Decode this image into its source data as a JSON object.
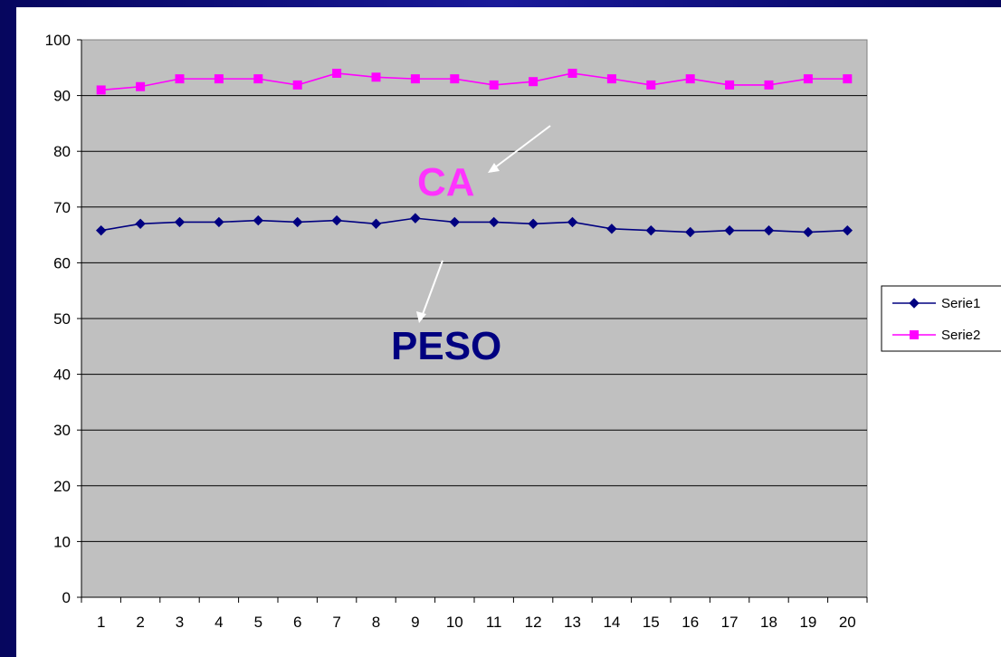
{
  "chart_data": {
    "type": "line",
    "title": "",
    "xlabel": "",
    "ylabel": "",
    "categories": [
      "1",
      "2",
      "3",
      "4",
      "5",
      "6",
      "7",
      "8",
      "9",
      "10",
      "11",
      "12",
      "13",
      "14",
      "15",
      "16",
      "17",
      "18",
      "19",
      "20"
    ],
    "ylim": [
      0,
      100
    ],
    "yticks": [
      "0",
      "10",
      "20",
      "30",
      "40",
      "50",
      "60",
      "70",
      "80",
      "90",
      "100"
    ],
    "grid": true,
    "legend_position": "right",
    "plot_background": "#c0c0c0",
    "series": [
      {
        "name": "Serie1",
        "color": "#000080",
        "marker": "diamond",
        "values": [
          65.8,
          67.0,
          67.3,
          67.3,
          67.6,
          67.3,
          67.6,
          67.0,
          68.0,
          67.3,
          67.3,
          67.0,
          67.3,
          66.1,
          65.8,
          65.5,
          65.8,
          65.8,
          65.5,
          65.8
        ]
      },
      {
        "name": "Serie2",
        "color": "#ff00ff",
        "marker": "square",
        "values": [
          91.0,
          91.6,
          93.0,
          93.0,
          93.0,
          91.9,
          94.0,
          93.3,
          93.0,
          93.0,
          91.9,
          92.5,
          94.0,
          93.0,
          91.9,
          93.0,
          91.9,
          91.9,
          93.0,
          93.0
        ]
      }
    ],
    "annotations": [
      {
        "text": "CA",
        "color": "#ff33ff"
      },
      {
        "text": "PESO",
        "color": "#000080"
      }
    ]
  }
}
